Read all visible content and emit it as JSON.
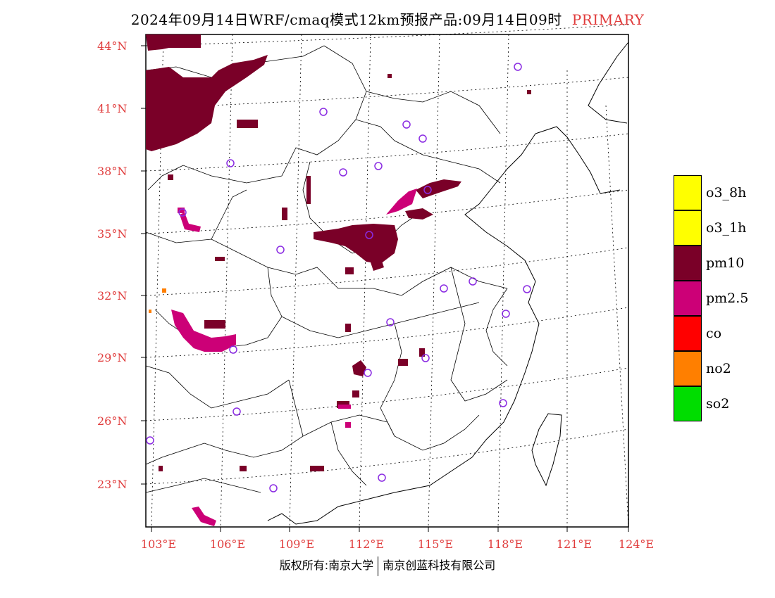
{
  "title": {
    "main": "2024年09月14日WRF/cmaq模式12km预报产品:09月14日09时",
    "badge": "PRIMARY"
  },
  "colors": {
    "label_red": "#e03c3c",
    "pm10": "#7a0028",
    "pm25": "#cc0077",
    "no2": "#ff7f00",
    "station": "#8a2be2"
  },
  "lat_labels": [
    "44°N",
    "41°N",
    "38°N",
    "35°N",
    "32°N",
    "29°N",
    "26°N",
    "23°N"
  ],
  "lon_labels": [
    "103°E",
    "106°E",
    "109°E",
    "112°E",
    "115°E",
    "118°E",
    "121°E",
    "124°E"
  ],
  "legend": [
    {
      "label": "o3_8h",
      "color": "#ffff00"
    },
    {
      "label": "o3_1h",
      "color": "#ffff00"
    },
    {
      "label": "pm10",
      "color": "#7a0028"
    },
    {
      "label": "pm2.5",
      "color": "#cc0077"
    },
    {
      "label": "co",
      "color": "#ff0000"
    },
    {
      "label": "no2",
      "color": "#ff7f00"
    },
    {
      "label": "so2",
      "color": "#00dd00"
    }
  ],
  "footer": {
    "left": "版权所有:南京大学",
    "right": "南京创蓝科技有限公司"
  }
}
